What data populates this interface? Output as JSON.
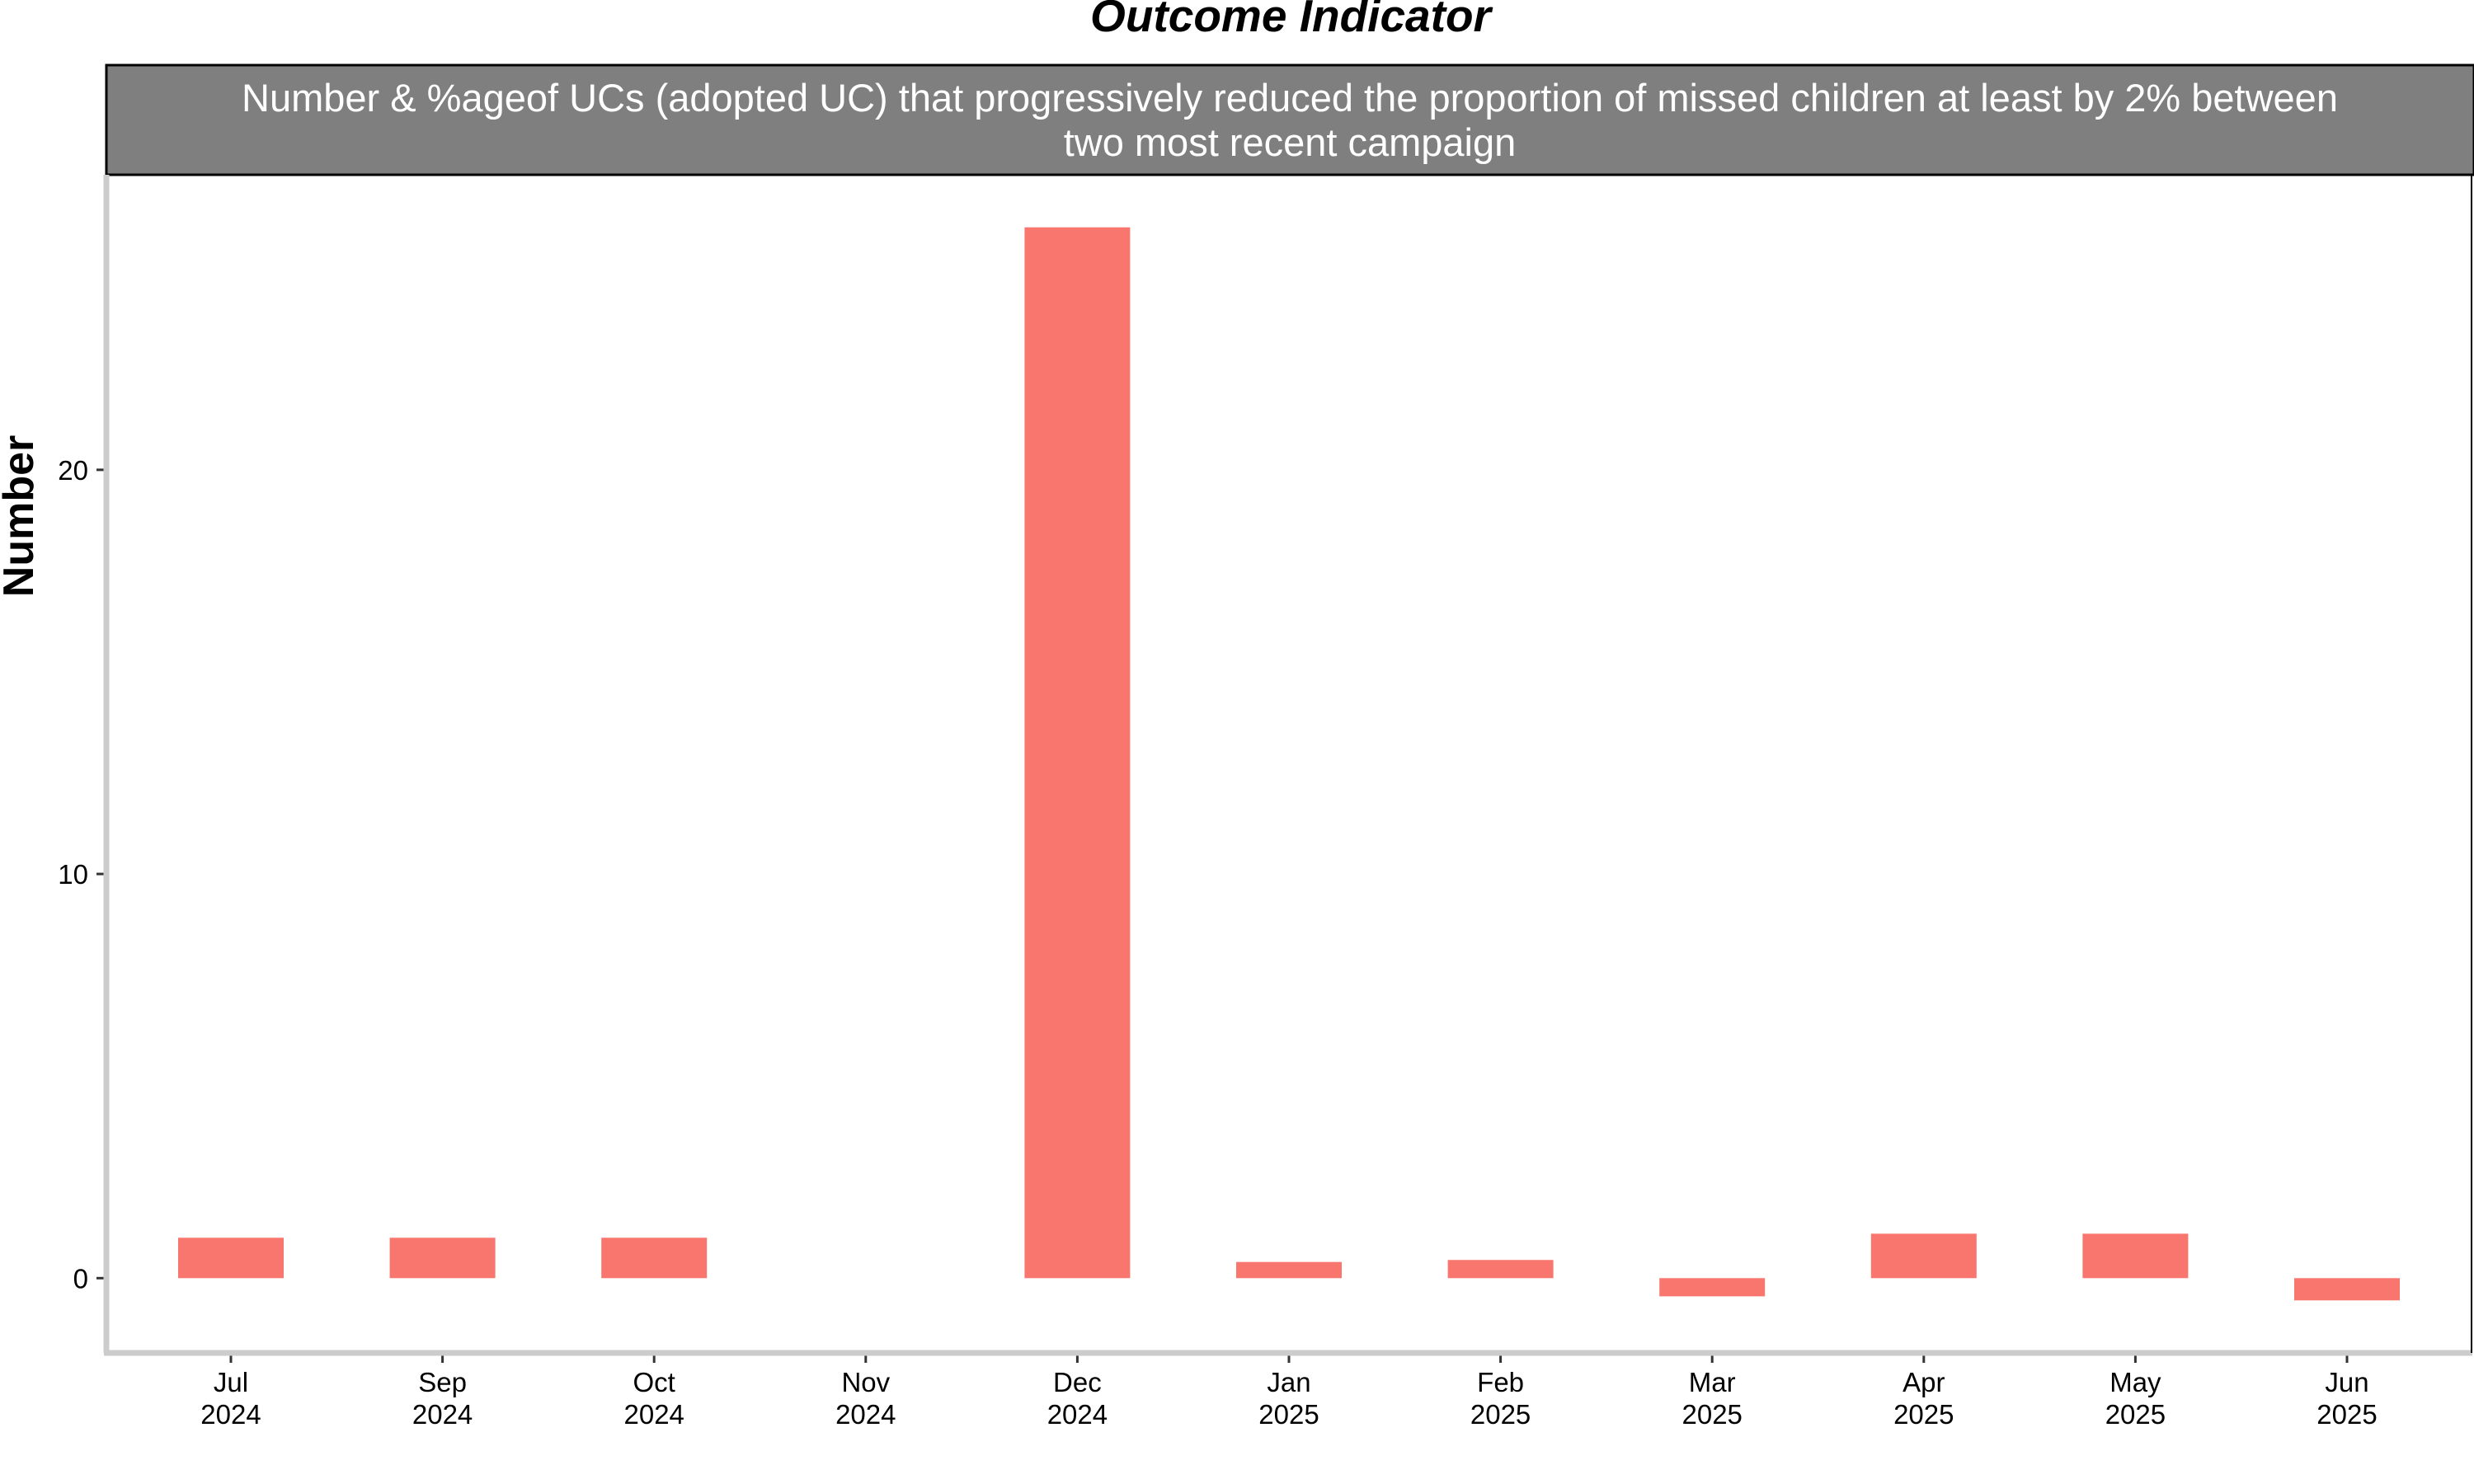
{
  "chart_data": {
    "type": "bar",
    "title": "Outcome Indicator",
    "subtitle_lines": [
      "Number & %ageof UCs (adopted UC) that progressively reduced the proportion of missed children at least by 2% between",
      "two most recent campaign"
    ],
    "xlabel": "",
    "ylabel": "Number",
    "categories": [
      {
        "month": "Jul",
        "year": "2024"
      },
      {
        "month": "Sep",
        "year": "2024"
      },
      {
        "month": "Oct",
        "year": "2024"
      },
      {
        "month": "Nov",
        "year": "2024"
      },
      {
        "month": "Dec",
        "year": "2024"
      },
      {
        "month": "Jan",
        "year": "2025"
      },
      {
        "month": "Feb",
        "year": "2025"
      },
      {
        "month": "Mar",
        "year": "2025"
      },
      {
        "month": "Apr",
        "year": "2025"
      },
      {
        "month": "May",
        "year": "2025"
      },
      {
        "month": "Jun",
        "year": "2025"
      }
    ],
    "values": [
      1,
      1,
      1,
      null,
      26,
      0.4,
      0.45,
      -0.45,
      1.1,
      1.1,
      -0.55
    ],
    "yticks": [
      0,
      10,
      20
    ],
    "ylim": [
      -1.85,
      27.3
    ],
    "bar_color": "#f8766d",
    "strip_color": "#7f7f7f",
    "grid": false,
    "legend": "none"
  }
}
